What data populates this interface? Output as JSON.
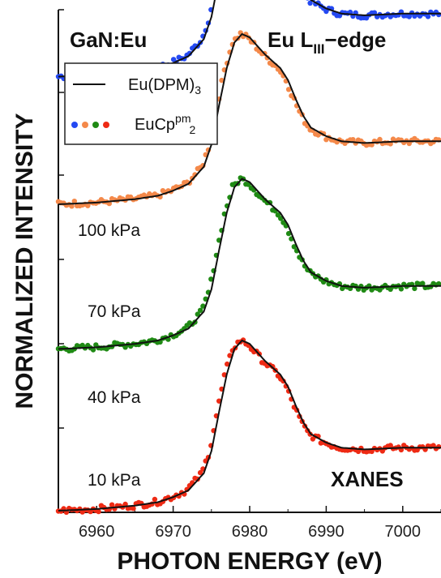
{
  "chart_data": {
    "type": "line",
    "title_left": "GaN:Eu",
    "title_right_main": "Eu L",
    "title_right_sub": "III",
    "title_right_tail": "−edge",
    "corner_label": "XANES",
    "xlabel": "PHOTON ENERGY (eV)",
    "ylabel": "NORMALIZED INTENSITY",
    "xlim": [
      6955,
      7005
    ],
    "x_ticks": [
      6960,
      6970,
      6980,
      6990,
      7000
    ],
    "x_tick_labels": [
      "6960",
      "6970",
      "6980",
      "6990",
      "7000"
    ],
    "legend": {
      "line_label_main": "Eu(DPM)",
      "line_label_sub": "3",
      "dots_label_main": "EuCp",
      "dots_label_sup": "pm",
      "dots_label_sub": "2"
    },
    "reference_shape": {
      "x": [
        6955,
        6960,
        6965,
        6968,
        6970,
        6972,
        6974,
        6975,
        6976,
        6977,
        6978,
        6979,
        6980,
        6981,
        6982,
        6983,
        6984,
        6985,
        6986,
        6987,
        6988,
        6990,
        6992,
        6995,
        7000,
        7005
      ],
      "y": [
        0.0,
        0.01,
        0.03,
        0.05,
        0.08,
        0.12,
        0.22,
        0.35,
        0.58,
        0.8,
        0.95,
        1.0,
        0.98,
        0.93,
        0.88,
        0.84,
        0.8,
        0.73,
        0.62,
        0.52,
        0.45,
        0.4,
        0.37,
        0.36,
        0.37,
        0.37
      ]
    },
    "series": [
      {
        "name": "100 kPa",
        "color": "#2449f2",
        "offset": 2.55
      },
      {
        "name": "70 kPa",
        "color": "#f4894a",
        "offset": 1.8
      },
      {
        "name": "40 kPa",
        "color": "#1f8a14",
        "offset": 0.95
      },
      {
        "name": "10 kPa",
        "color": "#ee2a14",
        "offset": 0.0
      }
    ]
  }
}
